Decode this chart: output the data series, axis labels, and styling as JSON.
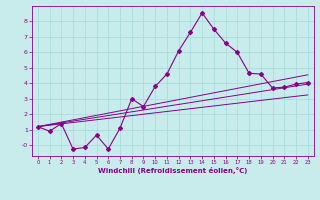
{
  "xlabel": "Windchill (Refroidissement éolien,°C)",
  "bg_color": "#c8ecec",
  "line_color": "#880088",
  "grid_color": "#aadddd",
  "xlim": [
    -0.5,
    23.5
  ],
  "ylim": [
    -0.7,
    9.0
  ],
  "yticks": [
    0,
    1,
    2,
    3,
    4,
    5,
    6,
    7,
    8
  ],
  "ytick_labels": [
    "-0",
    "1",
    "2",
    "3",
    "4",
    "5",
    "6",
    "7",
    "8"
  ],
  "xticks": [
    0,
    1,
    2,
    3,
    4,
    5,
    6,
    7,
    8,
    9,
    10,
    11,
    12,
    13,
    14,
    15,
    16,
    17,
    18,
    19,
    20,
    21,
    22,
    23
  ],
  "series1_x": [
    0,
    1,
    2,
    3,
    4,
    5,
    6,
    7,
    8,
    9,
    10,
    11,
    12,
    13,
    14,
    15,
    16,
    17,
    18,
    19,
    20,
    21,
    22,
    23
  ],
  "series1_y": [
    1.2,
    0.9,
    1.4,
    -0.25,
    -0.15,
    0.65,
    -0.25,
    1.1,
    3.0,
    2.5,
    3.8,
    4.6,
    6.1,
    7.3,
    8.55,
    7.5,
    6.6,
    6.0,
    4.65,
    4.6,
    3.7,
    3.75,
    3.95,
    4.05
  ],
  "series2_x": [
    0,
    23
  ],
  "series2_y": [
    1.2,
    4.55
  ],
  "series3_x": [
    0,
    23
  ],
  "series3_y": [
    1.2,
    3.25
  ],
  "series4_x": [
    0,
    23
  ],
  "series4_y": [
    1.2,
    3.95
  ]
}
